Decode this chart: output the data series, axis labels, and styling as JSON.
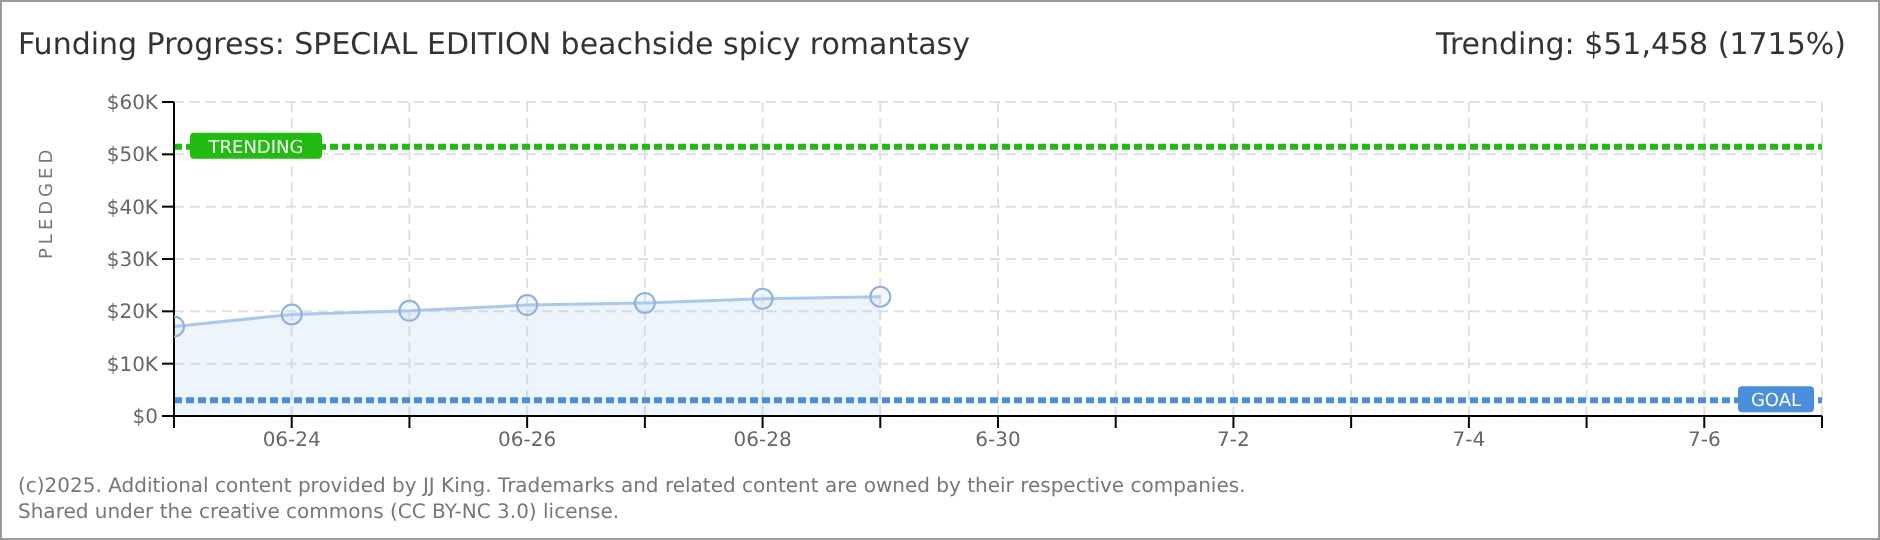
{
  "chart_data": {
    "type": "area",
    "title": "Funding Progress: SPECIAL EDITION beachside spicy romantasy",
    "subtitle": "Trending: $51,458 (1715%)",
    "ylabel": "PLEDGED",
    "x": [
      "--06-23",
      "--06-24",
      "--06-25",
      "--06-26",
      "--06-27",
      "--06-28",
      "--06-29"
    ],
    "series": [
      {
        "color": "#a9c8ec",
        "values": [
          17100,
          19400,
          20100,
          21200,
          21600,
          22400,
          22800
        ]
      }
    ],
    "xlim": [
      "--06-23",
      "--07-07"
    ],
    "xticks": [
      {
        "value": "--06-23",
        "label": null
      },
      {
        "value": "--06-24",
        "label": "06-24"
      },
      {
        "value": "--06-25",
        "label": null
      },
      {
        "value": "--06-26",
        "label": "06-26"
      },
      {
        "value": "--06-27",
        "label": null
      },
      {
        "value": "--06-28",
        "label": "06-28"
      },
      {
        "value": "--06-29",
        "label": null
      },
      {
        "value": "--06-30",
        "label": "6-30"
      },
      {
        "value": "--07-01",
        "label": null
      },
      {
        "value": "--07-02",
        "label": "7-2"
      },
      {
        "value": "--07-03",
        "label": null
      },
      {
        "value": "--07-04",
        "label": "7-4"
      },
      {
        "value": "--07-05",
        "label": null
      },
      {
        "value": "--07-06",
        "label": "7-6"
      },
      {
        "value": "--07-07",
        "label": null
      }
    ],
    "ylim": [
      0,
      60000
    ],
    "yticks": [
      {
        "value": 0,
        "label": "$0"
      },
      {
        "value": 10000,
        "label": "$10K"
      },
      {
        "value": 20000,
        "label": "$20K"
      },
      {
        "value": 30000,
        "label": "$30K"
      },
      {
        "value": 40000,
        "label": "$40K"
      },
      {
        "value": 50000,
        "label": "$50K"
      },
      {
        "value": 60000,
        "label": "$60K"
      }
    ],
    "ref_lines": [
      {
        "axis": "y",
        "value": 51458,
        "label": "TRENDING",
        "color": "#22bb11",
        "line_style": "dashed"
      },
      {
        "axis": "y",
        "value": 3000,
        "label": "GOAL",
        "color": "#4a8fdc",
        "line_style": "dashed"
      }
    ],
    "grid": true,
    "marker": "circle",
    "annotations": [
      "(c)2025. Additional content provided by JJ King. Trademarks and related content are owned by their respective companies.",
      "Shared under the creative commons (CC BY-NC 3.0) license."
    ]
  }
}
